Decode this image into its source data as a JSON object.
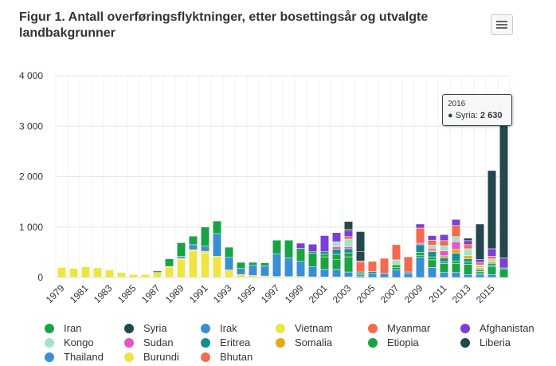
{
  "title": "Figur 1. Antall overføringsflyktninger, etter bosettingsår og utvalgte landbakgrunner",
  "tooltip": {
    "year": "2016",
    "series": "Syria",
    "value_text": "2 630"
  },
  "y_tick_labels": [
    "0",
    "1 000",
    "2 000",
    "3 000",
    "4 000"
  ],
  "x_tick_labels": [
    "1979",
    "1981",
    "1983",
    "1985",
    "1987",
    "1989",
    "1991",
    "1993",
    "1995",
    "1997",
    "1999",
    "2001",
    "2003",
    "2005",
    "2007",
    "2009",
    "2011",
    "2013",
    "2015"
  ],
  "chart_data": {
    "type": "bar",
    "stacked": true,
    "title": "Figur 1. Antall overføringsflyktninger, etter bosettingsår og utvalgte landbakgrunner",
    "xlabel": "",
    "ylabel": "",
    "ylim": [
      0,
      4000
    ],
    "grid": true,
    "legend_position": "bottom",
    "categories": [
      "1979",
      "1980",
      "1981",
      "1982",
      "1983",
      "1984",
      "1985",
      "1986",
      "1987",
      "1988",
      "1989",
      "1990",
      "1991",
      "1992",
      "1993",
      "1994",
      "1995",
      "1996",
      "1997",
      "1998",
      "1999",
      "2000",
      "2001",
      "2002",
      "2003",
      "2004",
      "2005",
      "2006",
      "2007",
      "2008",
      "2009",
      "2010",
      "2011",
      "2012",
      "2013",
      "2014",
      "2015",
      "2016"
    ],
    "series": [
      {
        "name": "Vietnam",
        "color": "#f0e442",
        "values": [
          200,
          180,
          210,
          190,
          150,
          100,
          60,
          60,
          100,
          200,
          350,
          530,
          480,
          420,
          150,
          60,
          40,
          30,
          20,
          20,
          20,
          10,
          10,
          10,
          10,
          0,
          0,
          0,
          0,
          0,
          0,
          0,
          0,
          0,
          0,
          0,
          0,
          0
        ]
      },
      {
        "name": "Burundi",
        "color": "#efe34a",
        "values": [
          0,
          0,
          0,
          0,
          0,
          0,
          0,
          0,
          0,
          20,
          30,
          20,
          40,
          0,
          0,
          0,
          0,
          0,
          0,
          0,
          0,
          0,
          0,
          0,
          0,
          0,
          0,
          0,
          0,
          0,
          0,
          0,
          0,
          0,
          0,
          0,
          0,
          0
        ]
      },
      {
        "name": "Irak",
        "color": "#3a8fd4",
        "values": [
          0,
          0,
          0,
          0,
          0,
          0,
          0,
          0,
          0,
          0,
          40,
          100,
          100,
          450,
          250,
          120,
          200,
          200,
          450,
          370,
          300,
          200,
          150,
          150,
          100,
          30,
          80,
          80,
          150,
          80,
          400,
          200,
          100,
          100,
          60,
          60,
          60,
          0
        ]
      },
      {
        "name": "Iran",
        "color": "#1aa344",
        "values": [
          0,
          0,
          0,
          0,
          0,
          0,
          0,
          0,
          30,
          150,
          270,
          170,
          380,
          250,
          200,
          120,
          60,
          60,
          270,
          350,
          260,
          270,
          250,
          200,
          300,
          30,
          0,
          0,
          50,
          0,
          40,
          150,
          180,
          180,
          200,
          30,
          160,
          170
        ]
      },
      {
        "name": "Syria",
        "color": "#24474d",
        "values": [
          0,
          0,
          0,
          0,
          0,
          0,
          0,
          0,
          0,
          0,
          0,
          0,
          0,
          0,
          0,
          0,
          0,
          0,
          0,
          0,
          0,
          0,
          0,
          0,
          150,
          400,
          0,
          0,
          0,
          0,
          0,
          0,
          0,
          0,
          50,
          700,
          1550,
          2630
        ]
      },
      {
        "name": "Afghanistan",
        "color": "#7b3fd6",
        "values": [
          0,
          0,
          0,
          0,
          0,
          0,
          0,
          0,
          0,
          0,
          0,
          0,
          0,
          0,
          0,
          0,
          0,
          0,
          0,
          0,
          100,
          150,
          320,
          180,
          120,
          20,
          0,
          0,
          0,
          0,
          80,
          90,
          120,
          120,
          80,
          60,
          150,
          200
        ]
      },
      {
        "name": "Myanmar",
        "color": "#f26a4f",
        "values": [
          0,
          0,
          0,
          0,
          0,
          0,
          0,
          0,
          0,
          0,
          0,
          0,
          0,
          0,
          0,
          0,
          0,
          0,
          0,
          0,
          0,
          0,
          0,
          0,
          50,
          200,
          200,
          300,
          300,
          300,
          300,
          100,
          100,
          220,
          80,
          50,
          50,
          0
        ]
      },
      {
        "name": "Kongo",
        "color": "#a8e2c4",
        "values": [
          0,
          0,
          0,
          0,
          0,
          0,
          0,
          0,
          0,
          0,
          0,
          0,
          0,
          0,
          0,
          0,
          0,
          0,
          0,
          0,
          0,
          0,
          0,
          100,
          150,
          0,
          0,
          0,
          100,
          0,
          0,
          60,
          100,
          100,
          140,
          60,
          60,
          0
        ]
      },
      {
        "name": "Sudan",
        "color": "#e754c7",
        "values": [
          0,
          0,
          0,
          0,
          0,
          0,
          0,
          0,
          0,
          0,
          0,
          0,
          0,
          0,
          0,
          0,
          0,
          0,
          0,
          0,
          0,
          0,
          0,
          50,
          40,
          0,
          0,
          0,
          0,
          0,
          30,
          40,
          100,
          150,
          0,
          0,
          0,
          0
        ]
      },
      {
        "name": "Eritrea",
        "color": "#118f96",
        "values": [
          0,
          0,
          0,
          0,
          0,
          0,
          0,
          0,
          0,
          0,
          0,
          0,
          0,
          0,
          0,
          0,
          0,
          0,
          0,
          0,
          0,
          0,
          50,
          100,
          80,
          30,
          40,
          0,
          0,
          30,
          150,
          100,
          80,
          150,
          60,
          30,
          30,
          20
        ]
      },
      {
        "name": "Somalia",
        "color": "#e6a817",
        "values": [
          0,
          0,
          0,
          0,
          0,
          0,
          0,
          0,
          0,
          0,
          0,
          0,
          0,
          0,
          0,
          0,
          0,
          0,
          0,
          0,
          0,
          0,
          0,
          0,
          0,
          0,
          0,
          0,
          0,
          0,
          0,
          30,
          40,
          80,
          60,
          40,
          30,
          0
        ]
      },
      {
        "name": "Etiopia",
        "color": "#1aa344",
        "values": [
          0,
          0,
          0,
          0,
          0,
          0,
          0,
          0,
          0,
          0,
          0,
          0,
          0,
          0,
          0,
          0,
          0,
          0,
          0,
          0,
          0,
          30,
          50,
          100,
          80,
          20,
          0,
          0,
          50,
          0,
          60,
          60,
          30,
          50,
          50,
          30,
          30,
          0
        ]
      },
      {
        "name": "Liberia",
        "color": "#24474d",
        "values": [
          0,
          0,
          0,
          0,
          0,
          0,
          0,
          0,
          0,
          0,
          0,
          0,
          0,
          0,
          0,
          0,
          0,
          0,
          0,
          0,
          0,
          0,
          0,
          0,
          30,
          180,
          0,
          0,
          0,
          0,
          0,
          0,
          0,
          0,
          0,
          0,
          0,
          0
        ]
      },
      {
        "name": "Thailand",
        "color": "#3a8fd4",
        "values": [
          0,
          0,
          0,
          0,
          0,
          0,
          0,
          0,
          0,
          0,
          0,
          0,
          0,
          0,
          0,
          0,
          0,
          0,
          0,
          0,
          0,
          0,
          0,
          0,
          0,
          0,
          0,
          0,
          0,
          0,
          0,
          0,
          0,
          0,
          0,
          0,
          0,
          0
        ]
      },
      {
        "name": "Bhutan",
        "color": "#f26a4f",
        "values": [
          0,
          0,
          0,
          0,
          0,
          0,
          0,
          0,
          0,
          0,
          0,
          0,
          0,
          0,
          0,
          0,
          0,
          0,
          0,
          0,
          0,
          0,
          0,
          0,
          0,
          0,
          0,
          0,
          0,
          0,
          0,
          0,
          0,
          0,
          0,
          0,
          0,
          0
        ]
      }
    ]
  },
  "legend": [
    {
      "label": "Iran",
      "color": "#1aa344"
    },
    {
      "label": "Syria",
      "color": "#24474d"
    },
    {
      "label": "Irak",
      "color": "#3a8fd4"
    },
    {
      "label": "Vietnam",
      "color": "#f0e442"
    },
    {
      "label": "Myanmar",
      "color": "#f26a4f"
    },
    {
      "label": "Afghanistan",
      "color": "#7b3fd6"
    },
    {
      "label": "Kongo",
      "color": "#a8e2c4"
    },
    {
      "label": "Sudan",
      "color": "#e754c7"
    },
    {
      "label": "Eritrea",
      "color": "#118f96"
    },
    {
      "label": "Somalia",
      "color": "#e6a817"
    },
    {
      "label": "Etiopia",
      "color": "#1aa344"
    },
    {
      "label": "Liberia",
      "color": "#24474d"
    },
    {
      "label": "Thailand",
      "color": "#3a8fd4"
    },
    {
      "label": "Burundi",
      "color": "#efe34a"
    },
    {
      "label": "Bhutan",
      "color": "#f26a4f"
    }
  ]
}
